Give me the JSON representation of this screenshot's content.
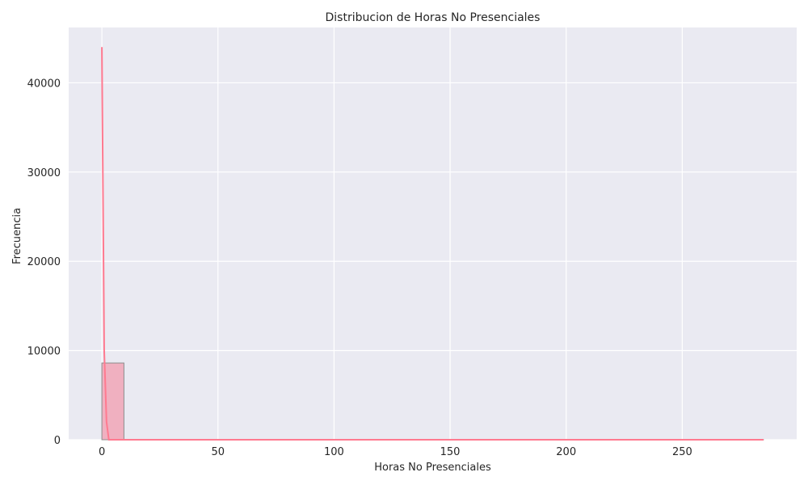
{
  "chart_data": {
    "type": "histogram",
    "title": "Distribucion de Horas No Presenciales",
    "xlabel": "Horas No Presenciales",
    "ylabel": "Frecuencia",
    "xlim": [
      -14.3,
      299.3
    ],
    "ylim": [
      0,
      46200
    ],
    "x_ticks": [
      0,
      50,
      100,
      150,
      200,
      250
    ],
    "y_ticks": [
      0,
      10000,
      20000,
      30000,
      40000
    ],
    "bin_width": 9.5,
    "bins": [
      {
        "x0": 0,
        "x1": 9.5,
        "count": 8600
      },
      {
        "x0": 9.5,
        "x1": 19,
        "count": 30
      },
      {
        "x0": 19,
        "x1": 28.5,
        "count": 10
      },
      {
        "x0": 28.5,
        "x1": 38,
        "count": 5
      },
      {
        "x0": 38,
        "x1": 47.5,
        "count": 3
      },
      {
        "x0": 47.5,
        "x1": 57,
        "count": 2
      },
      {
        "x0": 57,
        "x1": 66.5,
        "count": 1
      },
      {
        "x0": 66.5,
        "x1": 76,
        "count": 1
      },
      {
        "x0": 76,
        "x1": 85.5,
        "count": 1
      },
      {
        "x0": 85.5,
        "x1": 95,
        "count": 0
      },
      {
        "x0": 95,
        "x1": 104.5,
        "count": 1
      },
      {
        "x0": 104.5,
        "x1": 114,
        "count": 0
      },
      {
        "x0": 114,
        "x1": 123.5,
        "count": 0
      },
      {
        "x0": 123.5,
        "x1": 133,
        "count": 0
      },
      {
        "x0": 133,
        "x1": 142.5,
        "count": 0
      },
      {
        "x0": 142.5,
        "x1": 152,
        "count": 0
      },
      {
        "x0": 152,
        "x1": 161.5,
        "count": 0
      },
      {
        "x0": 161.5,
        "x1": 171,
        "count": 0
      },
      {
        "x0": 171,
        "x1": 180.5,
        "count": 0
      },
      {
        "x0": 180.5,
        "x1": 190,
        "count": 0
      },
      {
        "x0": 190,
        "x1": 199.5,
        "count": 0
      },
      {
        "x0": 199.5,
        "x1": 209,
        "count": 0
      },
      {
        "x0": 209,
        "x1": 218.5,
        "count": 0
      },
      {
        "x0": 218.5,
        "x1": 228,
        "count": 0
      },
      {
        "x0": 228,
        "x1": 237.5,
        "count": 0
      },
      {
        "x0": 237.5,
        "x1": 247,
        "count": 0
      },
      {
        "x0": 247,
        "x1": 256.5,
        "count": 0
      },
      {
        "x0": 256.5,
        "x1": 266,
        "count": 0
      },
      {
        "x0": 266,
        "x1": 275.5,
        "count": 0
      },
      {
        "x0": 275.5,
        "x1": 285,
        "count": 1
      }
    ],
    "kde": {
      "x": [
        0,
        1,
        2,
        3,
        285
      ],
      "y": [
        44000,
        10000,
        2000,
        0,
        0
      ]
    },
    "grid": true,
    "colors": {
      "background": "#eaeaf2",
      "grid": "#ffffff",
      "bar_fill": "#f0b0c0",
      "bar_stroke": "#8c8c8c",
      "kde_line": "#ff7a90",
      "text": "#262626"
    }
  }
}
